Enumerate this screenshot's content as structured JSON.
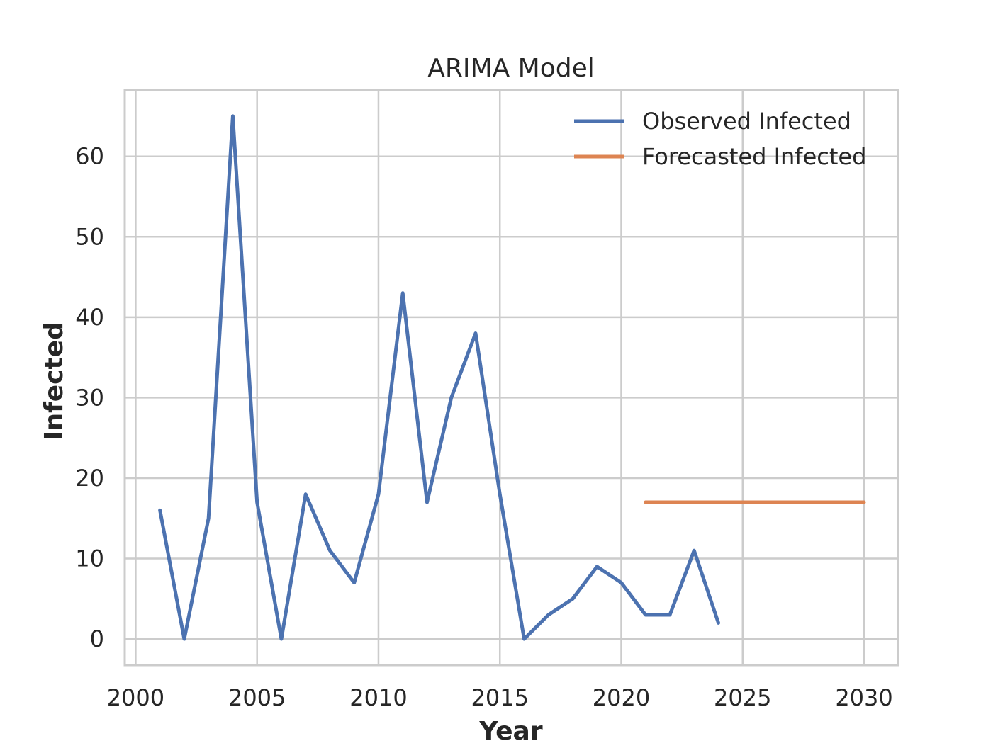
{
  "chart_data": {
    "type": "line",
    "title": "ARIMA Model",
    "xlabel": "Year",
    "ylabel": "Infected",
    "xlim": [
      1999.55,
      2031.4
    ],
    "ylim": [
      -3.25,
      68.25
    ],
    "xticks": [
      2000,
      2005,
      2010,
      2015,
      2020,
      2025,
      2030
    ],
    "yticks": [
      0,
      10,
      20,
      30,
      40,
      50,
      60
    ],
    "grid": true,
    "legend_position": "top-right",
    "series": [
      {
        "name": "Observed Infected",
        "color": "#4c72b0",
        "x": [
          2001,
          2002,
          2003,
          2004,
          2005,
          2006,
          2007,
          2008,
          2009,
          2010,
          2011,
          2012,
          2013,
          2014,
          2015,
          2016,
          2017,
          2018,
          2019,
          2020,
          2021,
          2022,
          2023,
          2024
        ],
        "y": [
          16,
          0,
          15,
          65,
          17,
          0,
          18,
          11,
          7,
          18,
          43,
          17,
          30,
          38,
          18,
          0,
          3,
          5,
          9,
          7,
          3,
          3,
          11,
          2
        ]
      },
      {
        "name": "Forecasted Infected",
        "color": "#dd8452",
        "x": [
          2021,
          2022,
          2023,
          2024,
          2025,
          2026,
          2027,
          2028,
          2029,
          2030
        ],
        "y": [
          17,
          17,
          17,
          17,
          17,
          17,
          17,
          17,
          17,
          17
        ]
      }
    ]
  }
}
